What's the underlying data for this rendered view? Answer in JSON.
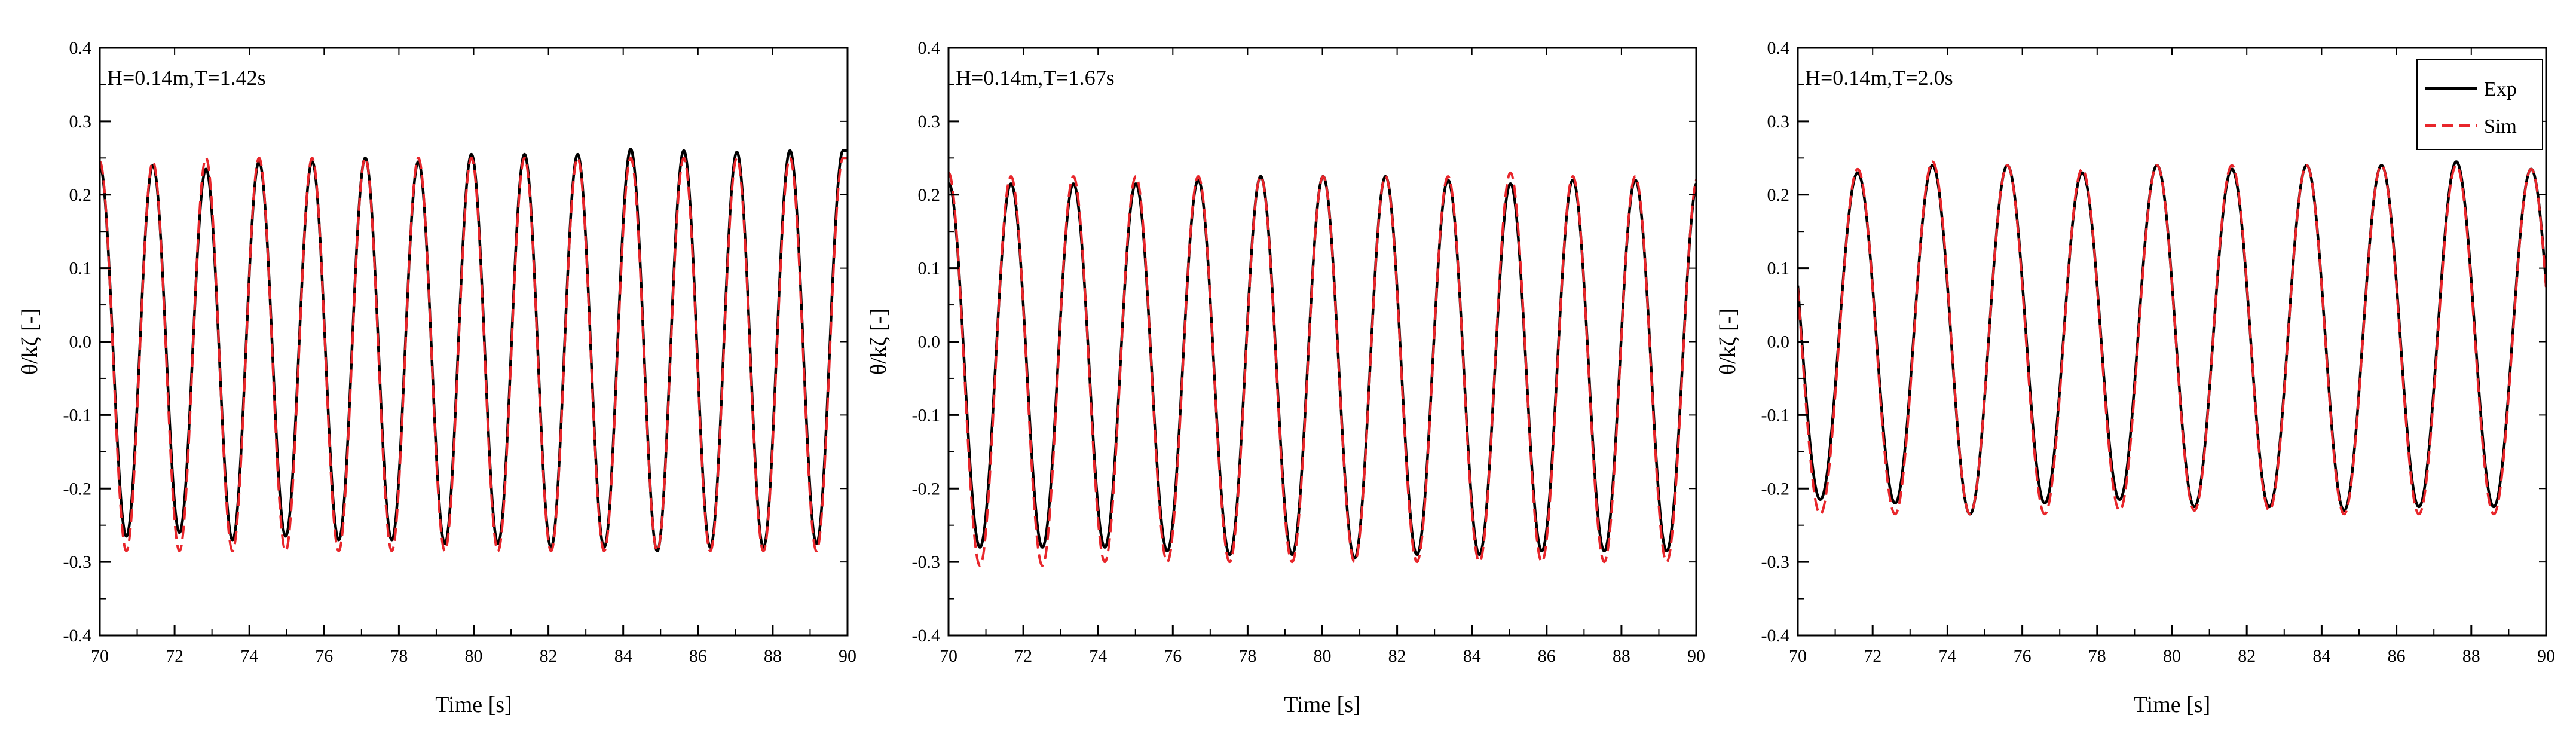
{
  "chart_data": [
    {
      "type": "line",
      "annotation": "H=0.14m,T=1.42s",
      "xlabel": "Time [s]",
      "ylabel": "θ/kζ [-]",
      "xlim": [
        70,
        90
      ],
      "ylim": [
        -0.4,
        0.4
      ],
      "xticks": [
        70,
        72,
        74,
        76,
        78,
        80,
        82,
        84,
        86,
        88,
        90
      ],
      "xtick_labels": [
        "70",
        "72",
        "74",
        "76",
        "78",
        "80",
        "82",
        "84",
        "86",
        "88",
        "90"
      ],
      "yticks": [
        -0.4,
        -0.3,
        -0.2,
        -0.1,
        0.0,
        0.1,
        0.2,
        0.3,
        0.4
      ],
      "ytick_labels": [
        "-0.4",
        "-0.3",
        "-0.2",
        "-0.1",
        "0.0",
        "0.1",
        "0.2",
        "0.3",
        "0.4"
      ],
      "period_s": 1.42,
      "legend": null,
      "series": [
        {
          "name": "Exp",
          "style": "solid",
          "color": "#000000",
          "peak_times": [
            71.42,
            72.84,
            74.26,
            75.68,
            77.1,
            78.52,
            79.94,
            81.36,
            82.78,
            84.2,
            85.62,
            87.04,
            88.46
          ],
          "peak_values": [
            0.24,
            0.235,
            0.245,
            0.245,
            0.25,
            0.245,
            0.255,
            0.255,
            0.255,
            0.262,
            0.26,
            0.258,
            0.26
          ],
          "trough_times": [
            70.71,
            72.13,
            73.55,
            74.97,
            76.39,
            77.81,
            79.23,
            80.65,
            82.07,
            83.49,
            84.91,
            86.33,
            87.75,
            89.17
          ],
          "trough_values": [
            -0.265,
            -0.26,
            -0.27,
            -0.265,
            -0.27,
            -0.27,
            -0.275,
            -0.275,
            -0.28,
            -0.28,
            -0.285,
            -0.28,
            -0.28,
            -0.275
          ]
        },
        {
          "name": "Sim",
          "style": "dashed",
          "color": "#e8262b",
          "peak_times": [
            71.42,
            72.84,
            74.26,
            75.68,
            77.1,
            78.52,
            79.94,
            81.36,
            82.78,
            84.2,
            85.62,
            87.04,
            88.46
          ],
          "peak_values": [
            0.245,
            0.25,
            0.25,
            0.25,
            0.25,
            0.25,
            0.25,
            0.25,
            0.25,
            0.25,
            0.25,
            0.25,
            0.25
          ],
          "trough_times": [
            70.71,
            72.13,
            73.55,
            74.97,
            76.39,
            77.81,
            79.23,
            80.65,
            82.07,
            83.49,
            84.91,
            86.33,
            87.75,
            89.17
          ],
          "trough_values": [
            -0.285,
            -0.285,
            -0.285,
            -0.285,
            -0.285,
            -0.285,
            -0.285,
            -0.285,
            -0.285,
            -0.285,
            -0.285,
            -0.285,
            -0.285,
            -0.285
          ]
        }
      ]
    },
    {
      "type": "line",
      "annotation": "H=0.14m,T=1.67s",
      "xlabel": "Time [s]",
      "ylabel": "θ/kζ [-]",
      "xlim": [
        70,
        90
      ],
      "ylim": [
        -0.4,
        0.4
      ],
      "xticks": [
        70,
        72,
        74,
        76,
        78,
        80,
        82,
        84,
        86,
        88,
        90
      ],
      "xtick_labels": [
        "70",
        "72",
        "74",
        "76",
        "78",
        "80",
        "82",
        "84",
        "86",
        "88",
        "90"
      ],
      "yticks": [
        -0.4,
        -0.3,
        -0.2,
        -0.1,
        0.0,
        0.1,
        0.2,
        0.3,
        0.4
      ],
      "ytick_labels": [
        "-0.4",
        "-0.3",
        "-0.2",
        "-0.1",
        "0.0",
        "0.1",
        "0.2",
        "0.3",
        "0.4"
      ],
      "period_s": 1.67,
      "legend": null,
      "series": [
        {
          "name": "Exp",
          "style": "solid",
          "color": "#000000",
          "peak_times": [
            71.67,
            73.34,
            75.01,
            76.68,
            78.35,
            80.02,
            81.69,
            83.36,
            85.03,
            86.7,
            88.37
          ],
          "peak_values": [
            0.215,
            0.215,
            0.215,
            0.22,
            0.225,
            0.225,
            0.225,
            0.22,
            0.215,
            0.22,
            0.22
          ],
          "trough_times": [
            70.84,
            72.51,
            74.18,
            75.85,
            77.52,
            79.19,
            80.86,
            82.53,
            84.2,
            85.87,
            87.54,
            89.21
          ],
          "trough_values": [
            -0.28,
            -0.28,
            -0.28,
            -0.285,
            -0.29,
            -0.29,
            -0.295,
            -0.29,
            -0.29,
            -0.285,
            -0.285,
            -0.285
          ]
        },
        {
          "name": "Sim",
          "style": "dashed",
          "color": "#e8262b",
          "peak_times": [
            70.0,
            71.67,
            73.34,
            75.01,
            76.68,
            78.35,
            80.02,
            81.69,
            83.36,
            85.03,
            86.7,
            88.37
          ],
          "peak_values": [
            0.23,
            0.225,
            0.225,
            0.225,
            0.225,
            0.225,
            0.225,
            0.225,
            0.225,
            0.23,
            0.225,
            0.225
          ],
          "trough_times": [
            70.84,
            72.51,
            74.18,
            75.85,
            77.52,
            79.19,
            80.86,
            82.53,
            84.2,
            85.87,
            87.54,
            89.21
          ],
          "trough_values": [
            -0.305,
            -0.305,
            -0.3,
            -0.3,
            -0.3,
            -0.3,
            -0.3,
            -0.3,
            -0.3,
            -0.3,
            -0.3,
            -0.3
          ]
        }
      ]
    },
    {
      "type": "line",
      "annotation": "H=0.14m,T=2.0s",
      "xlabel": "Time [s]",
      "ylabel": "θ/kζ [-]",
      "xlim": [
        70,
        90
      ],
      "ylim": [
        -0.4,
        0.4
      ],
      "xticks": [
        70,
        72,
        74,
        76,
        78,
        80,
        82,
        84,
        86,
        88,
        90
      ],
      "xtick_labels": [
        "70",
        "72",
        "74",
        "76",
        "78",
        "80",
        "82",
        "84",
        "86",
        "88",
        "90"
      ],
      "yticks": [
        -0.4,
        -0.3,
        -0.2,
        -0.1,
        0.0,
        0.1,
        0.2,
        0.3,
        0.4
      ],
      "ytick_labels": [
        "-0.4",
        "-0.3",
        "-0.2",
        "-0.1",
        "0.0",
        "0.1",
        "0.2",
        "0.3",
        "0.4"
      ],
      "period_s": 2.0,
      "legend": {
        "placement": "top-right",
        "entries": [
          "Exp",
          "Sim"
        ]
      },
      "series": [
        {
          "name": "Exp",
          "style": "solid",
          "color": "#000000",
          "peak_times": [
            71.6,
            73.6,
            75.6,
            77.6,
            79.6,
            81.6,
            83.6,
            85.6,
            87.6,
            89.6
          ],
          "peak_values": [
            0.23,
            0.24,
            0.24,
            0.23,
            0.24,
            0.235,
            0.24,
            0.24,
            0.245,
            0.235
          ],
          "trough_times": [
            70.6,
            72.6,
            74.6,
            76.6,
            78.6,
            80.6,
            82.6,
            84.6,
            86.6,
            88.6
          ],
          "trough_values": [
            -0.215,
            -0.22,
            -0.235,
            -0.22,
            -0.215,
            -0.225,
            -0.225,
            -0.23,
            -0.225,
            -0.225
          ]
        },
        {
          "name": "Sim",
          "style": "dashed",
          "color": "#e8262b",
          "peak_times": [
            71.6,
            73.6,
            75.6,
            77.6,
            79.6,
            81.6,
            83.6,
            85.6,
            87.6,
            89.6
          ],
          "peak_values": [
            0.235,
            0.245,
            0.24,
            0.235,
            0.24,
            0.24,
            0.24,
            0.24,
            0.24,
            0.235
          ],
          "trough_times": [
            70.6,
            72.6,
            74.6,
            76.6,
            78.6,
            80.6,
            82.6,
            84.6,
            86.6,
            88.6
          ],
          "trough_values": [
            -0.235,
            -0.235,
            -0.235,
            -0.235,
            -0.23,
            -0.23,
            -0.23,
            -0.235,
            -0.235,
            -0.235
          ]
        }
      ]
    }
  ]
}
